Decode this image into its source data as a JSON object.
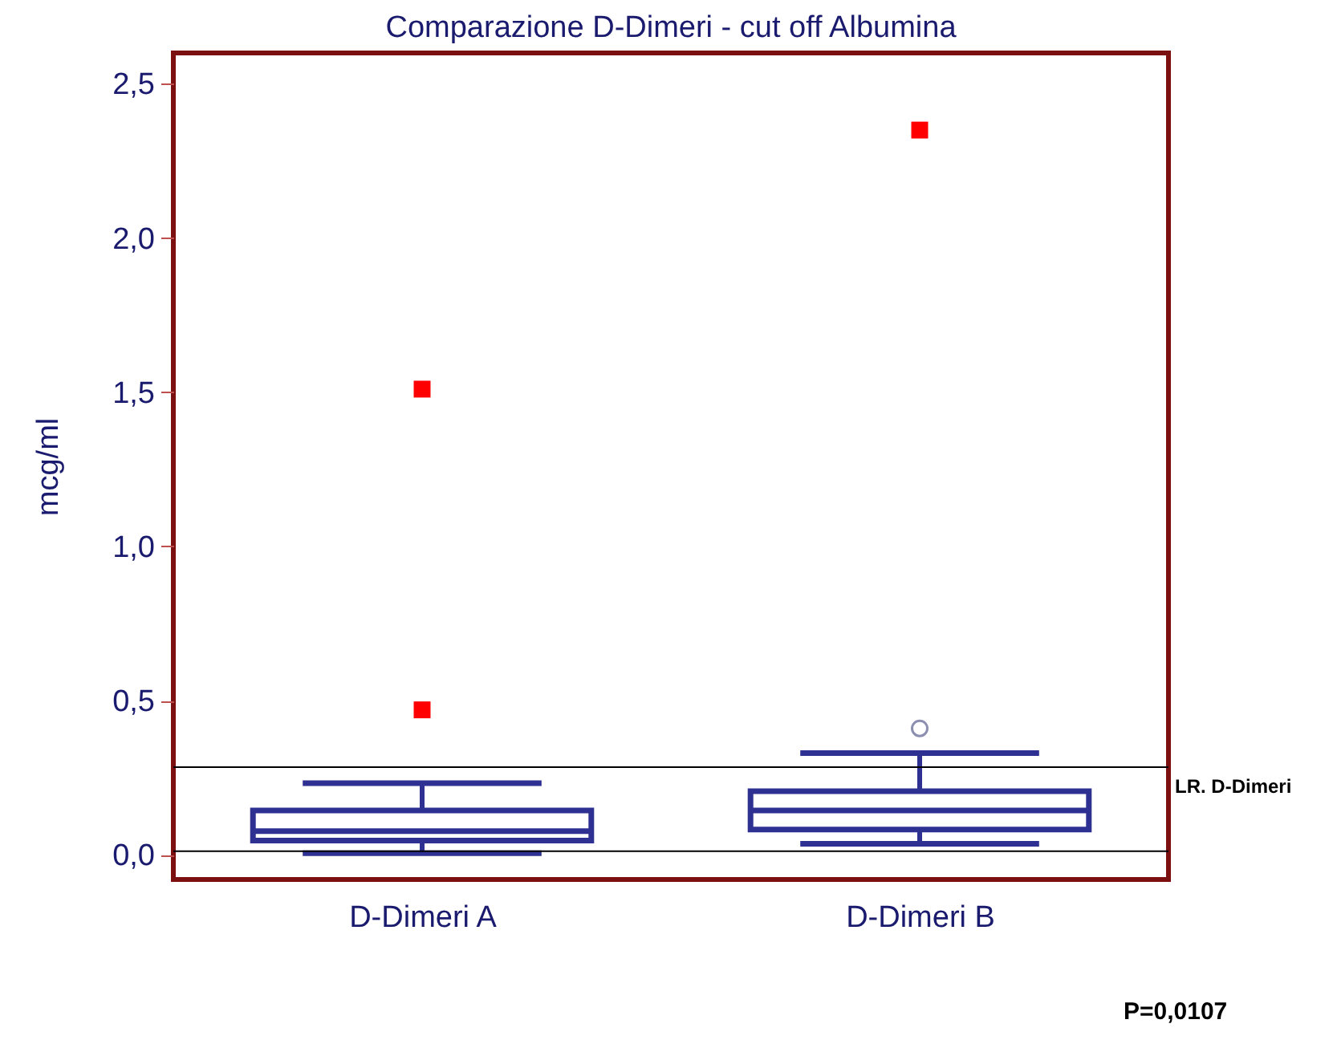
{
  "chart_data": {
    "type": "box",
    "title": "Comparazione D-Dimeri - cut off Albumina",
    "ylabel": "mcg/ml",
    "categories": [
      "D-Dimeri A",
      "D-Dimeri B"
    ],
    "boxes": [
      {
        "low": 0.005,
        "q1": 0.046,
        "median": 0.077,
        "q3": 0.144,
        "high": 0.232
      },
      {
        "low": 0.036,
        "q1": 0.082,
        "median": 0.144,
        "q3": 0.206,
        "high": 0.33,
        "outliers": [
          0.41
        ]
      }
    ],
    "color": "#2e3192",
    "series": [
      {
        "type": "scatter",
        "color": "#ff0000",
        "marker": "square",
        "x": [
          "D-Dimeri A",
          "D-Dimeri A",
          "D-Dimeri B"
        ],
        "values": [
          1.51,
          0.47,
          2.35
        ]
      }
    ],
    "ylim": [
      -0.08,
      2.6
    ],
    "yticks": [
      {
        "value": 0,
        "label": "0,0"
      },
      {
        "value": 0.5,
        "label": "0,5"
      },
      {
        "value": 1,
        "label": "1,0"
      },
      {
        "value": 1.5,
        "label": "1,5"
      },
      {
        "value": 2,
        "label": "2,0"
      },
      {
        "value": 2.5,
        "label": "2,5"
      }
    ],
    "ref_lines": [
      {
        "axis": "y",
        "value": 0.284,
        "label": "LR. D-Dimeri",
        "color": "#000000"
      },
      {
        "axis": "y",
        "value": 0.012,
        "label": null,
        "color": "#000000"
      }
    ],
    "annotations": [
      "P=0,0107"
    ],
    "grid": false
  }
}
